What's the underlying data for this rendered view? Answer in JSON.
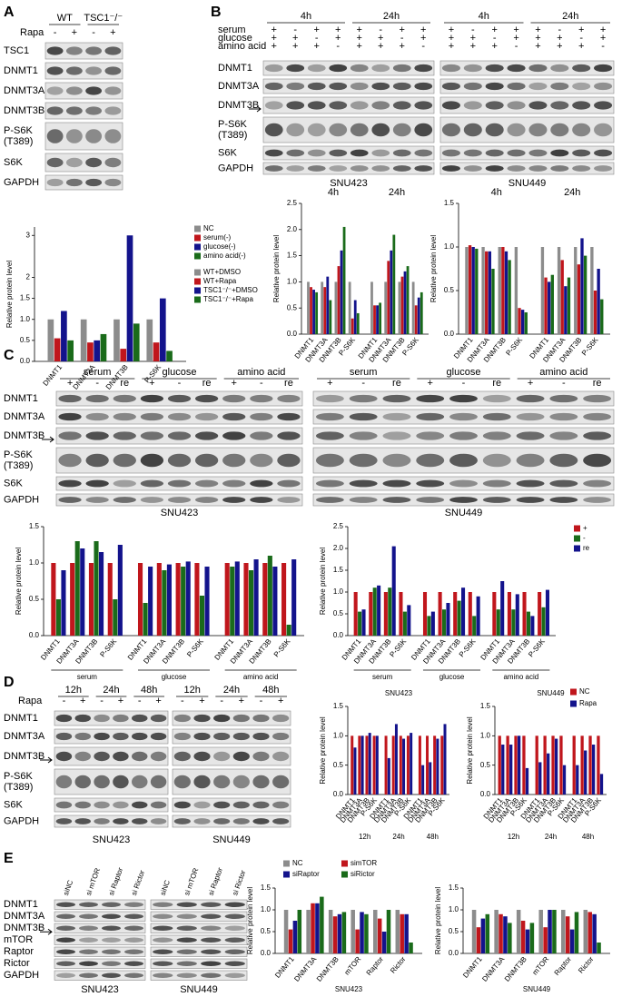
{
  "panel_letters": [
    "A",
    "B",
    "C",
    "D",
    "E"
  ],
  "blots": [
    {
      "row_labels": [
        [
          "TSC1"
        ],
        [
          "DNMT1"
        ],
        [
          "DNMT3A"
        ],
        [
          "DNMT3B"
        ],
        [
          "P-S6K",
          "(T389)"
        ],
        [
          "S6K"
        ],
        [
          "GAPDH"
        ]
      ],
      "condition_labels": [
        "Rapa"
      ],
      "membranes": [
        {
          "groups": [
            "WT",
            "TSC1⁻/⁻"
          ],
          "conditions": [
            [
              "-",
              "+",
              "-",
              "+"
            ]
          ]
        }
      ]
    },
    {
      "row_labels": [
        [
          "DNMT1"
        ],
        [
          "DNMT3A"
        ],
        [
          "DNMT3B"
        ],
        [
          "P-S6K",
          "(T389)"
        ],
        [
          "S6K"
        ],
        [
          "GAPDH"
        ]
      ],
      "condition_labels": [
        "serum",
        "glucose",
        "amino acid"
      ],
      "membranes": [
        {
          "caption": "SNU423",
          "groups": [
            "4h",
            "24h"
          ],
          "conditions": [
            [
              "+",
              "-",
              "+",
              "+",
              "+",
              "-",
              "+",
              "+"
            ],
            [
              "+",
              "+",
              "-",
              "+",
              "+",
              "+",
              "-",
              "+"
            ],
            [
              "+",
              "+",
              "+",
              "-",
              "+",
              "+",
              "+",
              "-"
            ]
          ]
        },
        {
          "caption": "SNU449",
          "groups": [
            "4h",
            "24h"
          ],
          "conditions": [
            [
              "+",
              "-",
              "+",
              "+",
              "+",
              "-",
              "+",
              "+"
            ],
            [
              "+",
              "+",
              "-",
              "+",
              "+",
              "+",
              "-",
              "+"
            ],
            [
              "+",
              "+",
              "+",
              "-",
              "+",
              "+",
              "+",
              "-"
            ]
          ]
        }
      ]
    },
    {
      "row_labels": [
        [
          "DNMT1"
        ],
        [
          "DNMT3A"
        ],
        [
          "DNMT3B"
        ],
        [
          "P-S6K",
          "(T389)"
        ],
        [
          "S6K"
        ],
        [
          "GAPDH"
        ]
      ],
      "condition_labels": [],
      "membranes": [
        {
          "caption": "SNU423",
          "groups": [
            "serum",
            "glucose",
            "amino acid"
          ],
          "conditions": [
            [
              "+",
              "-",
              "re",
              "+",
              "-",
              "re",
              "+",
              "-",
              "re"
            ]
          ]
        },
        {
          "caption": "SNU449",
          "groups": [
            "serum",
            "glucose",
            "amino acid"
          ],
          "conditions": [
            [
              "+",
              "-",
              "re",
              "+",
              "-",
              "re",
              "+",
              "-",
              "re"
            ]
          ]
        }
      ]
    },
    {
      "row_labels": [
        [
          "DNMT1"
        ],
        [
          "DNMT3A"
        ],
        [
          "DNMT3B"
        ],
        [
          "P-S6K",
          "(T389)"
        ],
        [
          "S6K"
        ],
        [
          "GAPDH"
        ]
      ],
      "condition_labels": [
        "Rapa"
      ],
      "membranes": [
        {
          "caption": "SNU423",
          "groups": [
            "12h",
            "24h",
            "48h"
          ],
          "conditions": [
            [
              "-",
              "+",
              "-",
              "+",
              "-",
              "+"
            ]
          ]
        },
        {
          "caption": "SNU449",
          "groups": [
            "12h",
            "24h",
            "48h"
          ],
          "conditions": [
            [
              "-",
              "+",
              "-",
              "+",
              "-",
              "+"
            ]
          ]
        }
      ]
    },
    {
      "row_labels": [
        [
          "DNMT1"
        ],
        [
          "DNMT3A"
        ],
        [
          "DNMT3B"
        ],
        [
          "mTOR"
        ],
        [
          "Raptor"
        ],
        [
          "Rictor"
        ],
        [
          "GAPDH"
        ]
      ],
      "condition_labels": [],
      "membranes": [
        {
          "caption": "SNU423",
          "lane_labels": [
            "siNC",
            "si mTOR",
            "si Raptor",
            "si Rictor"
          ]
        },
        {
          "caption": "SNU449",
          "lane_labels": [
            "siNC",
            "si mTOR",
            "si Raptor",
            "si Rictor"
          ]
        }
      ]
    }
  ],
  "chart_data": [
    {
      "type": "bar",
      "y_label": "Relative protein level",
      "categories": [
        "DNMT1",
        "DNMT3A",
        "DNMT3B",
        "P-S6K"
      ],
      "series": [
        {
          "name": "WT+DMSO",
          "color": "#8c8c8c",
          "values": [
            1.0,
            1.0,
            1.0,
            1.0
          ]
        },
        {
          "name": "WT+Rapa",
          "color": "#c0161c",
          "values": [
            0.55,
            0.45,
            0.3,
            0.45
          ]
        },
        {
          "name": "TSC1⁻/⁻+DMSO",
          "color": "#13138c",
          "values": [
            1.2,
            0.5,
            3.0,
            1.5
          ]
        },
        {
          "name": "TSC1⁻/⁻+Rapa",
          "color": "#1a6b1a",
          "values": [
            0.5,
            0.65,
            0.9,
            0.25
          ]
        }
      ],
      "ylim": [
        0,
        3.2
      ],
      "yticks": [
        {
          "value": 0,
          "label": "0.0"
        },
        0.5,
        {
          "value": 1,
          "label": "1.0"
        },
        1.5,
        2,
        3
      ],
      "legend": true
    },
    {
      "type": "bar",
      "y_label": "Relative protein level",
      "categories": [
        "DNMT1",
        "DNMT3A",
        "DNMT3B",
        "P-S6K",
        "DNMT1",
        "DNMT3A",
        "DNMT3B",
        "P-S6K"
      ],
      "groups": [
        "4h",
        "24h"
      ],
      "series": [
        {
          "name": "NC",
          "color": "#8c8c8c",
          "values": [
            1.0,
            1.0,
            1.0,
            1.0,
            1.0,
            1.0,
            1.0,
            1.0
          ]
        },
        {
          "name": "serum(-)",
          "color": "#c0161c",
          "values": [
            0.9,
            0.9,
            1.3,
            0.3,
            0.55,
            1.4,
            1.1,
            0.55
          ]
        },
        {
          "name": "glucose(-)",
          "color": "#13138c",
          "values": [
            0.85,
            1.1,
            1.6,
            0.65,
            0.55,
            1.6,
            1.2,
            0.7
          ]
        },
        {
          "name": "amino acid(-)",
          "color": "#1a6b1a",
          "values": [
            0.8,
            0.65,
            2.05,
            0.4,
            0.6,
            1.9,
            1.3,
            0.8
          ]
        }
      ],
      "ylim": [
        0,
        2.5
      ],
      "yticks": [
        {
          "value": 0,
          "label": "0.0"
        },
        0.5,
        {
          "value": 1,
          "label": "1.0"
        },
        1.5,
        {
          "value": 2,
          "label": "2.0"
        },
        2.5
      ],
      "legend": true
    },
    {
      "type": "bar",
      "y_label": "Relative protein level",
      "categories": [
        "DNMT1",
        "DNMT3A",
        "DNMT3B",
        "P-S6K",
        "DNMT1",
        "DNMT3A",
        "DNMT3B",
        "P-S6K"
      ],
      "groups": [
        "4h",
        "24h"
      ],
      "series": [
        {
          "color": "#8c8c8c",
          "values": [
            1.0,
            1.0,
            1.0,
            1.0,
            1.0,
            1.0,
            1.0,
            1.0
          ]
        },
        {
          "color": "#c0161c",
          "values": [
            1.02,
            0.95,
            1.0,
            0.3,
            0.65,
            0.85,
            0.8,
            0.5
          ]
        },
        {
          "color": "#13138c",
          "values": [
            1.0,
            0.95,
            0.95,
            0.28,
            0.6,
            0.55,
            1.1,
            0.75
          ]
        },
        {
          "color": "#1a6b1a",
          "values": [
            0.98,
            0.75,
            0.85,
            0.25,
            0.68,
            0.65,
            0.9,
            0.4
          ]
        }
      ],
      "ylim": [
        0,
        1.5
      ],
      "yticks": [
        {
          "value": 0,
          "label": "0.0"
        },
        0.5,
        {
          "value": 1,
          "label": "1.0"
        },
        1.5
      ],
      "legend": false
    },
    {
      "type": "bar",
      "y_label": "Relative protein level",
      "categories": [
        "DNMT1",
        "DNMT3A",
        "DNMT3B",
        "P-S6K",
        "DNMT1",
        "DNMT3A",
        "DNMT3B",
        "P-S6K",
        "DNMT1",
        "DNMT3A",
        "DNMT3B",
        "P-S6K"
      ],
      "groups": [
        "serum",
        "glucose",
        "amino acid"
      ],
      "series": [
        {
          "color": "#c0161c",
          "values": [
            1.0,
            1.0,
            1.0,
            1.0,
            1.0,
            1.0,
            1.0,
            1.0,
            1.0,
            1.0,
            1.0,
            1.0
          ]
        },
        {
          "color": "#1a6b1a",
          "values": [
            0.5,
            1.3,
            1.3,
            0.5,
            0.45,
            0.9,
            0.95,
            0.55,
            0.95,
            0.9,
            1.1,
            0.15
          ]
        },
        {
          "color": "#13138c",
          "values": [
            0.9,
            1.2,
            1.15,
            1.25,
            0.95,
            0.98,
            1.02,
            0.95,
            1.02,
            1.05,
            0.95,
            1.05
          ]
        }
      ],
      "ylim": [
        0,
        1.5
      ],
      "yticks": [
        {
          "value": 0,
          "label": "0.0"
        },
        0.5,
        {
          "value": 1,
          "label": "1.0"
        },
        1.5
      ],
      "legend": false
    },
    {
      "type": "bar",
      "y_label": "Relative protein level",
      "categories": [
        "DNMT1",
        "DNMT3A",
        "DNMT3B",
        "P-S6K",
        "DNMT1",
        "DNMT3A",
        "DNMT3B",
        "P-S6K",
        "DNMT1",
        "DNMT3A",
        "DNMT3B",
        "P-S6K"
      ],
      "groups": [
        "serum",
        "glucose",
        "amino acid"
      ],
      "series": [
        {
          "name": "+",
          "color": "#c0161c",
          "values": [
            1.0,
            1.0,
            1.0,
            1.0,
            1.0,
            1.0,
            1.0,
            1.0,
            1.0,
            1.0,
            1.0,
            1.0
          ]
        },
        {
          "name": "-",
          "color": "#1a6b1a",
          "values": [
            0.55,
            1.1,
            1.1,
            0.55,
            0.45,
            0.6,
            0.8,
            0.45,
            0.6,
            0.6,
            0.55,
            0.65
          ]
        },
        {
          "name": "re",
          "color": "#13138c",
          "values": [
            0.6,
            1.15,
            2.05,
            0.7,
            0.55,
            0.75,
            1.1,
            0.9,
            1.25,
            0.95,
            0.45,
            1.05
          ]
        }
      ],
      "ylim": [
        0,
        2.5
      ],
      "yticks": [
        {
          "value": 0,
          "label": "0.0"
        },
        0.5,
        {
          "value": 1,
          "label": "1.0"
        },
        1.5,
        {
          "value": 2,
          "label": "2.0"
        },
        2.5
      ],
      "legend": true
    },
    {
      "type": "bar",
      "title": "SNU423",
      "y_label": "Relative protein level",
      "categories": [
        "DNMT1",
        "DNMT3A",
        "DNMT3B",
        "P-S6K",
        "DNMT1",
        "DNMT3A",
        "DNMT3B",
        "P-S6K",
        "DNMT1",
        "DNMT3A",
        "DNMT3B",
        "P-S6K"
      ],
      "groups": [
        "12h",
        "24h",
        "48h"
      ],
      "series": [
        {
          "color": "#c0161c",
          "values": [
            1.0,
            1.0,
            1.0,
            1.0,
            1.0,
            1.0,
            1.0,
            1.0,
            1.0,
            1.0,
            1.0,
            1.0
          ]
        },
        {
          "color": "#13138c",
          "values": [
            0.8,
            1.0,
            1.05,
            1.0,
            0.62,
            1.2,
            0.95,
            1.05,
            0.5,
            0.55,
            0.95,
            1.2
          ]
        }
      ],
      "ylim": [
        0,
        1.5
      ],
      "yticks": [
        {
          "value": 0,
          "label": "0.0"
        },
        0.5,
        {
          "value": 1,
          "label": "1.0"
        },
        1.5
      ],
      "legend": false
    },
    {
      "type": "bar",
      "title": "SNU449",
      "y_label": "Relative protein level",
      "categories": [
        "DNMT1",
        "DNMT3A",
        "DNMT3B",
        "P-S6K",
        "DNMT1",
        "DNMT3A",
        "DNMT3B",
        "P-S6K",
        "DNMT1",
        "DNMT3A",
        "DNMT3B",
        "P-S6K"
      ],
      "groups": [
        "12h",
        "24h",
        "48h"
      ],
      "series": [
        {
          "name": "NC",
          "color": "#c0161c",
          "values": [
            1.0,
            1.0,
            1.0,
            1.0,
            1.0,
            1.0,
            1.0,
            1.0,
            1.0,
            1.0,
            1.0,
            1.0
          ]
        },
        {
          "name": "Rapa",
          "color": "#13138c",
          "values": [
            0.85,
            0.85,
            1.0,
            0.45,
            0.55,
            0.7,
            0.95,
            0.5,
            0.5,
            0.75,
            0.85,
            0.35
          ]
        }
      ],
      "ylim": [
        0,
        1.5
      ],
      "yticks": [
        {
          "value": 0,
          "label": "0.0"
        },
        0.5,
        {
          "value": 1,
          "label": "1.0"
        },
        1.5
      ],
      "legend": true
    },
    {
      "type": "bar",
      "x_label": "SNU423",
      "y_label": "Relative protein level",
      "categories": [
        "DNMT1",
        "DNMT3A",
        "DNMT3B",
        "mTOR",
        "Raptor",
        "Rictor"
      ],
      "series": [
        {
          "name": "NC",
          "color": "#8c8c8c",
          "values": [
            1.0,
            1.0,
            1.0,
            1.0,
            1.0,
            1.0
          ]
        },
        {
          "name": "simTOR",
          "color": "#c0161c",
          "values": [
            0.55,
            1.15,
            0.85,
            0.55,
            0.8,
            0.9
          ]
        },
        {
          "name": "siRaptor",
          "color": "#13138c",
          "values": [
            0.75,
            1.15,
            0.9,
            0.95,
            0.5,
            0.9
          ]
        },
        {
          "name": "siRictor",
          "color": "#1a6b1a",
          "values": [
            1.0,
            1.3,
            0.95,
            0.9,
            1.0,
            0.25
          ]
        }
      ],
      "ylim": [
        0,
        1.5
      ],
      "yticks": [
        {
          "value": 0,
          "label": "0.0"
        },
        0.5,
        {
          "value": 1,
          "label": "1.0"
        },
        1.5
      ],
      "legend": true
    },
    {
      "type": "bar",
      "x_label": "SNU449",
      "y_label": "Relative protein level",
      "categories": [
        "DNMT1",
        "DNMT3A",
        "DNMT3B",
        "mTOR",
        "Raptor",
        "Rictor"
      ],
      "series": [
        {
          "color": "#8c8c8c",
          "values": [
            1.0,
            1.0,
            1.0,
            1.0,
            1.0,
            1.0
          ]
        },
        {
          "color": "#c0161c",
          "values": [
            0.6,
            0.9,
            0.75,
            0.6,
            0.85,
            0.95
          ]
        },
        {
          "color": "#13138c",
          "values": [
            0.8,
            0.85,
            0.55,
            1.0,
            0.55,
            0.9
          ]
        },
        {
          "color": "#1a6b1a",
          "values": [
            0.9,
            0.7,
            0.7,
            1.0,
            0.95,
            0.25
          ]
        }
      ],
      "ylim": [
        0,
        1.5
      ],
      "yticks": [
        {
          "value": 0,
          "label": "0.0"
        },
        0.5,
        {
          "value": 1,
          "label": "1.0"
        },
        1.5
      ],
      "legend": false
    }
  ]
}
